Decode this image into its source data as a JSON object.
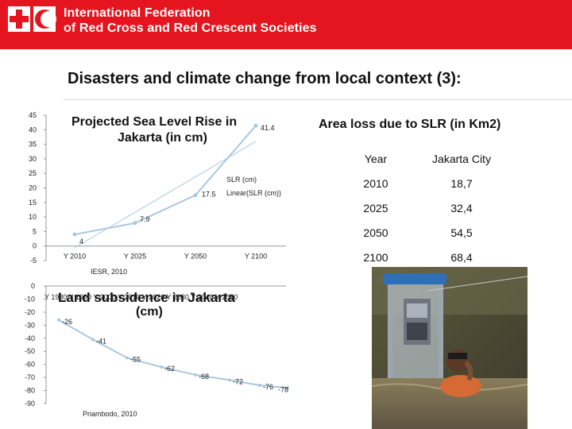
{
  "header": {
    "org_line1": "International Federation",
    "org_line2": "of Red Cross and Red Crescent Societies",
    "brand_color": "#e4151f"
  },
  "slide": {
    "title": "Disasters and climate change from local context (3):"
  },
  "chart_data": [
    {
      "type": "line",
      "title": "Projected Sea Level Rise in Jakarta (in cm)",
      "categories": [
        "Y 2010",
        "Y 2025",
        "Y 2050",
        "Y 2100"
      ],
      "series": [
        {
          "name": "SLR (cm)",
          "values": [
            4,
            7.9,
            17.5,
            41.4
          ]
        }
      ],
      "data_labels": [
        "4",
        "7.9",
        "17.5",
        "41.4"
      ],
      "legend": [
        "SLR (cm)",
        "Linear(SLR (cm))"
      ],
      "ylim": [
        -5,
        45
      ],
      "yticks": [
        "45",
        "40",
        "35",
        "30",
        "25",
        "20",
        "15",
        "10",
        "5",
        "0",
        "-5"
      ],
      "source": "IESR, 2010",
      "color": "#a9c8e0",
      "grid": false
    },
    {
      "type": "line",
      "title": "Land subsidence in Jakarta (cm)",
      "categories": [
        "Y 1980",
        "Y 1990",
        "Y 2000",
        "Y 2010",
        "Y 2020",
        "Y 2030",
        "Y 2040",
        "Y 2050"
      ],
      "category_labels_text": "Y 1980  Y 1990  Y 2000  Y 2010  Y 2020  Y 2030  Y 2040  Y 2050",
      "series": [
        {
          "name": "",
          "values": [
            -26,
            -41,
            -55,
            -62,
            -68,
            -72,
            -76,
            -78
          ]
        }
      ],
      "data_labels": [
        "-26",
        "-41",
        "-55",
        "-62",
        "-68",
        "-72",
        "-76",
        "-78"
      ],
      "ylim": [
        -90,
        0
      ],
      "yticks": [
        "0",
        "-10",
        "-20",
        "-30",
        "-40",
        "-50",
        "-60",
        "-70",
        "-80",
        "-90"
      ],
      "source": "Priambodo, 2010",
      "color": "#a9c8e0",
      "grid": false
    }
  ],
  "area_loss": {
    "title": "Area loss due to SLR (in Km2)",
    "headers": [
      "Year",
      "Jakarta City"
    ],
    "rows": [
      [
        "2010",
        "18,7"
      ],
      [
        "2025",
        "32,4"
      ],
      [
        "2050",
        "54,5"
      ],
      [
        "2100",
        "68,4"
      ]
    ]
  }
}
